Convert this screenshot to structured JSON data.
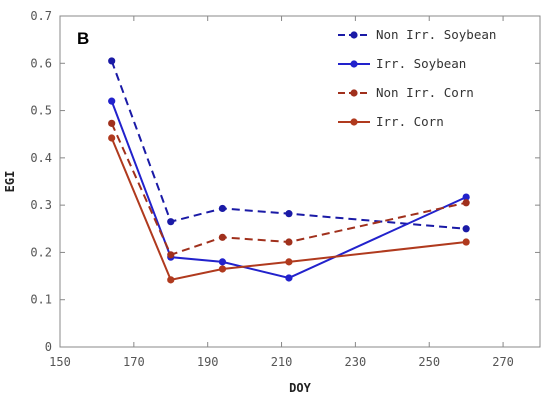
{
  "chart_data": {
    "type": "line",
    "panel_label": "B",
    "xlabel": "DOY",
    "ylabel": "EGI",
    "xlim": [
      150,
      280
    ],
    "ylim": [
      0,
      0.7
    ],
    "xticks": [
      150,
      170,
      190,
      210,
      230,
      250,
      270
    ],
    "yticks": [
      0,
      0.1,
      0.2,
      0.3,
      0.4,
      0.5,
      0.6,
      0.7
    ],
    "grid": false,
    "legend_position": "top-right",
    "series": [
      {
        "name": "Non Irr. Soybean",
        "color": "#1a1aa6",
        "dash": "dashed",
        "x": [
          164,
          180,
          194,
          212,
          260
        ],
        "y": [
          0.605,
          0.265,
          0.293,
          0.282,
          0.25
        ]
      },
      {
        "name": "Irr. Soybean",
        "color": "#2222cc",
        "dash": "solid",
        "x": [
          164,
          180,
          194,
          212,
          260
        ],
        "y": [
          0.52,
          0.19,
          0.18,
          0.146,
          0.317
        ]
      },
      {
        "name": "Non Irr. Corn",
        "color": "#a0301c",
        "dash": "dashed",
        "x": [
          164,
          180,
          194,
          212,
          260
        ],
        "y": [
          0.473,
          0.195,
          0.232,
          0.222,
          0.305
        ]
      },
      {
        "name": "Irr. Corn",
        "color": "#b03a1e",
        "dash": "solid",
        "x": [
          164,
          180,
          194,
          212,
          260
        ],
        "y": [
          0.442,
          0.142,
          0.165,
          0.18,
          0.222
        ]
      }
    ]
  }
}
